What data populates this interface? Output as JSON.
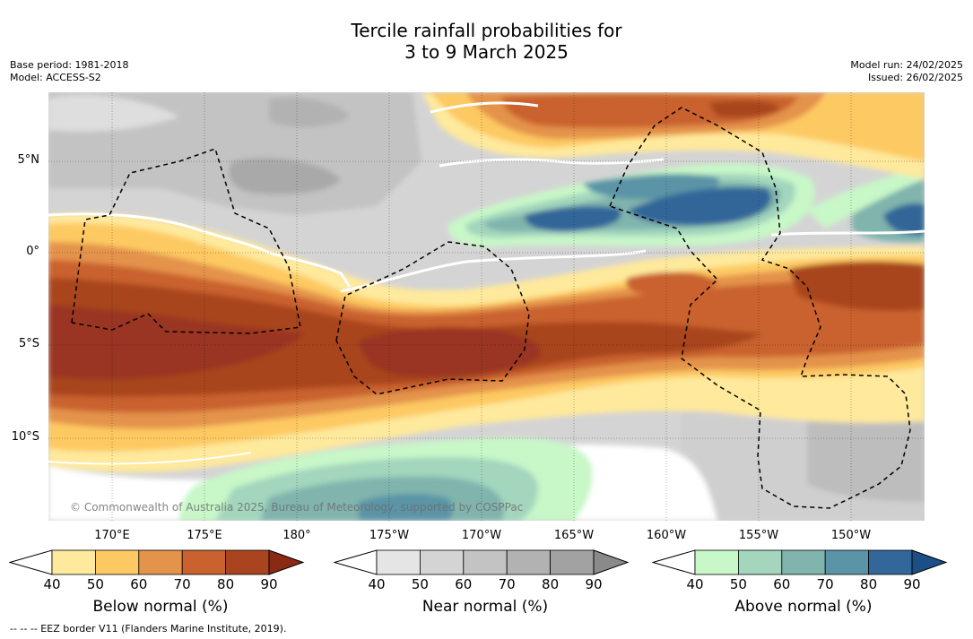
{
  "title": [
    "Tercile rainfall probabilities for",
    "3 to 9 March 2025"
  ],
  "meta_left": [
    "Base period: 1981-2018",
    "Model: ACCESS-S2"
  ],
  "meta_right": [
    "Model run: 24/02/2025",
    "Issued: 26/02/2025"
  ],
  "lat_labels": [
    "5°N",
    "0°",
    "5°S",
    "10°S"
  ],
  "lon_labels": [
    "170°E",
    "175°E",
    "180°",
    "175°W",
    "170°W",
    "165°W",
    "160°W",
    "155°W",
    "150°W"
  ],
  "copyright": "© Commonwealth of Australia 2025, Bureau of Meteorology, supported by COSPPac",
  "colorbars": [
    {
      "title": "Below normal (%)",
      "ticks": [
        "40",
        "50",
        "60",
        "70",
        "80",
        "90"
      ],
      "colors": [
        "#ffffff",
        "#fee99c",
        "#fdc962",
        "#e4934b",
        "#c9622e",
        "#a9441f",
        "#8b2a14"
      ]
    },
    {
      "title": "Near normal (%)",
      "ticks": [
        "40",
        "50",
        "60",
        "70",
        "80",
        "90"
      ],
      "colors": [
        "#ffffff",
        "#e5e5e5",
        "#d4d4d4",
        "#c3c3c3",
        "#b2b2b2",
        "#a2a2a2",
        "#8a8a8a"
      ]
    },
    {
      "title": "Above normal (%)",
      "ticks": [
        "40",
        "50",
        "60",
        "70",
        "80",
        "90"
      ],
      "colors": [
        "#ffffff",
        "#c8f7c8",
        "#a3d6bd",
        "#80b4ad",
        "#5a94a6",
        "#336699",
        "#1c4e88"
      ]
    }
  ],
  "footer": "--  --  -- EEZ border V11 (Flanders Marine Institute, 2019)."
}
